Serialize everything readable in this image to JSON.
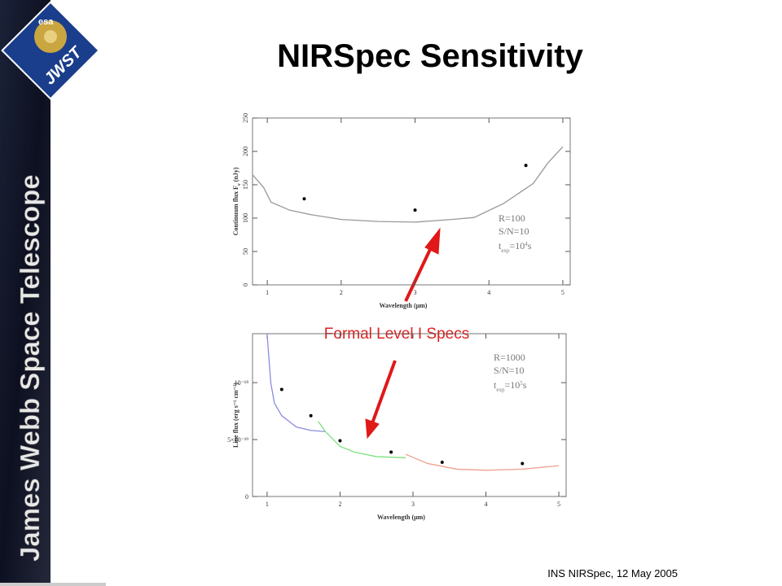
{
  "slide": {
    "title": "NIRSpec Sensitivity",
    "footer": "INS NIRSpec, 12 May 2005",
    "banner": "James Webb Space Telescope",
    "logo": {
      "agency": "esa",
      "mission": "JWST"
    },
    "callout": "Formal Level I Specs"
  },
  "chart_data": [
    {
      "type": "line",
      "xlabel": "Wavelength (μm)",
      "ylabel": [
        "Continuum flux F",
        "ν",
        " (nJy)"
      ],
      "xlim": [
        0.8,
        5.1
      ],
      "xticks": [
        1,
        2,
        3,
        4,
        5
      ],
      "ylim": [
        0,
        250
      ],
      "yticks": [
        0,
        50,
        100,
        150,
        200,
        250
      ],
      "annotation": {
        "lines": [
          "R=100",
          "S/N=10"
        ],
        "t": "t",
        "sub": "exp",
        "eq": "=10",
        "sup": "4",
        "unit": "s"
      },
      "series": [
        {
          "color": "#999999",
          "x": [
            0.8,
            0.95,
            1.05,
            1.3,
            1.6,
            2.0,
            2.5,
            3.0,
            3.5,
            3.8,
            4.2,
            4.6,
            4.8,
            5.0
          ],
          "values": [
            165,
            146,
            124,
            112,
            105,
            98,
            95,
            94,
            98,
            101,
            122,
            152,
            183,
            207
          ]
        }
      ],
      "points": {
        "color": "#000000",
        "x": [
          1.5,
          3.0,
          4.5
        ],
        "values": [
          129,
          112,
          179
        ]
      }
    },
    {
      "type": "line",
      "xlabel": "Wavelength (μm)",
      "ylabel": [
        "Line flux (erg s⁻¹ cm⁻²)"
      ],
      "xlim": [
        0.8,
        5.1
      ],
      "xticks": [
        1,
        2,
        3,
        4,
        5
      ],
      "ylim": [
        0,
        1.43e-18
      ],
      "yticks": [
        0,
        {
          "value": 5e-19,
          "label": "5×10⁻¹⁹"
        },
        {
          "value": 1e-18,
          "label": "10⁻¹⁸"
        }
      ],
      "annotation": {
        "lines": [
          "R=1000",
          "S/N=10"
        ],
        "t": "t",
        "sub": "exp",
        "eq": "=10",
        "sup": "5",
        "unit": "s"
      },
      "series": [
        {
          "color": "#8c8ce0",
          "x": [
            1.0,
            1.05,
            1.1,
            1.2,
            1.4,
            1.6,
            1.8
          ],
          "values": [
            1.43e-18,
            1e-18,
            8.2e-19,
            7.1e-19,
            6.1e-19,
            5.8e-19,
            5.7e-19
          ]
        },
        {
          "color": "#7ee07e",
          "x": [
            1.7,
            1.8,
            2.0,
            2.2,
            2.5,
            2.9
          ],
          "values": [
            6.6e-19,
            5.7e-19,
            4.4e-19,
            3.9e-19,
            3.5e-19,
            3.4e-19
          ]
        },
        {
          "color": "#f0a090",
          "x": [
            2.9,
            3.2,
            3.6,
            4.0,
            4.5,
            5.0
          ],
          "values": [
            3.7e-19,
            2.9e-19,
            2.4e-19,
            2.3e-19,
            2.4e-19,
            2.7e-19
          ]
        }
      ],
      "points": {
        "color": "#000000",
        "x": [
          1.2,
          1.6,
          2.0,
          2.7,
          3.4,
          4.5
        ],
        "values": [
          9.4e-19,
          7.1e-19,
          4.9e-19,
          3.9e-19,
          3e-19,
          2.9e-19
        ]
      }
    }
  ]
}
